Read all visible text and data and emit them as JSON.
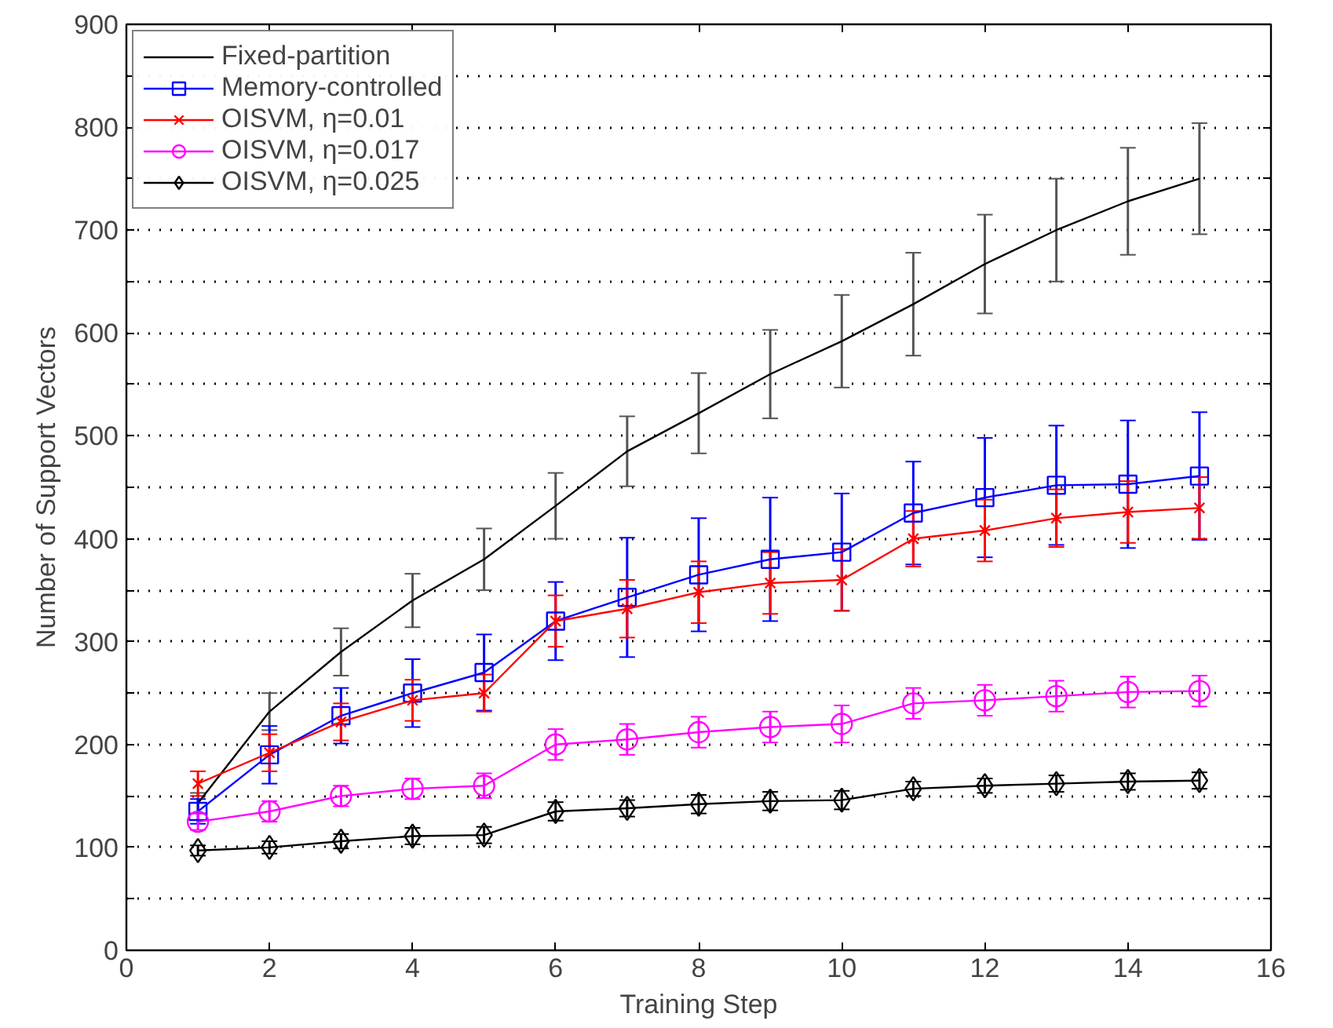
{
  "chart_data": {
    "type": "line",
    "xlabel": "Training Step",
    "ylabel": "Number of Support Vectors",
    "x": [
      1,
      2,
      3,
      4,
      5,
      6,
      7,
      8,
      9,
      10,
      11,
      12,
      13,
      14,
      15
    ],
    "xlim": [
      0,
      16
    ],
    "xticks": [
      0,
      2,
      4,
      6,
      8,
      10,
      12,
      14,
      16
    ],
    "ylim": [
      0,
      900
    ],
    "yticks": [
      0,
      {
        "value": 50,
        "label": null
      },
      100,
      {
        "value": 150,
        "label": null
      },
      200,
      {
        "value": 250,
        "label": null
      },
      300,
      {
        "value": 350,
        "label": null
      },
      400,
      {
        "value": 450,
        "label": null
      },
      500,
      {
        "value": 550,
        "label": null
      },
      600,
      {
        "value": 650,
        "label": null
      },
      700,
      {
        "value": 750,
        "label": null
      },
      800,
      {
        "value": 850,
        "label": null
      },
      900
    ],
    "grid": "y",
    "legend": "top left",
    "line_style": "solid",
    "series": [
      {
        "name": "Fixed-partition",
        "color": "#000000",
        "marker": "none",
        "values": [
          143,
          232,
          290,
          340,
          380,
          432,
          485,
          522,
          560,
          592,
          628,
          667,
          700,
          728,
          750
        ],
        "errors": [
          10,
          18,
          23,
          26,
          30,
          32,
          34,
          39,
          43,
          45,
          50,
          48,
          50,
          52,
          54
        ]
      },
      {
        "name": "Memory-controlled",
        "color": "#0000ff",
        "marker": "square",
        "values": [
          135,
          190,
          228,
          250,
          270,
          320,
          343,
          365,
          380,
          387,
          425,
          440,
          452,
          453,
          461
        ],
        "errors": [
          12,
          28,
          27,
          33,
          37,
          38,
          58,
          55,
          60,
          57,
          50,
          58,
          58,
          62,
          62
        ]
      },
      {
        "name": "OISVM, η=0.01",
        "color": "#ff0000",
        "marker": "cross",
        "values": [
          162,
          192,
          222,
          243,
          250,
          320,
          332,
          348,
          357,
          360,
          400,
          408,
          420,
          426,
          430
        ],
        "errors": [
          12,
          18,
          18,
          20,
          18,
          25,
          28,
          30,
          30,
          30,
          27,
          30,
          28,
          30,
          30
        ]
      },
      {
        "name": "OISVM, η=0.017",
        "color": "#ff00ff",
        "marker": "circle",
        "values": [
          125,
          135,
          150,
          157,
          160,
          200,
          205,
          212,
          217,
          220,
          240,
          243,
          247,
          251,
          252
        ],
        "errors": [
          8,
          10,
          10,
          10,
          12,
          15,
          15,
          15,
          15,
          18,
          15,
          15,
          15,
          15,
          15
        ]
      },
      {
        "name": "OISVM, η=0.025",
        "color": "#000000",
        "marker": "diamond",
        "values": [
          97,
          100,
          106,
          111,
          112,
          135,
          138,
          142,
          145,
          146,
          157,
          160,
          162,
          164,
          165
        ],
        "errors": [
          5,
          6,
          7,
          8,
          8,
          9,
          8,
          9,
          9,
          9,
          7,
          7,
          8,
          8,
          8
        ]
      }
    ]
  }
}
